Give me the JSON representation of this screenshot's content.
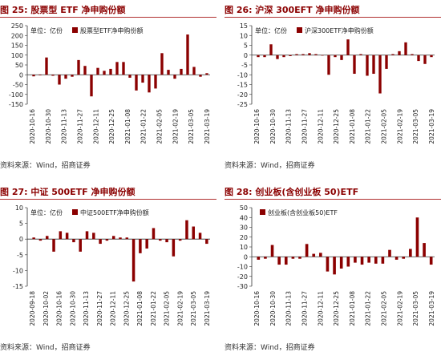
{
  "panels": [
    {
      "title": "图 25: 股票型 ETF 净申购份额",
      "source": "资料来源：Wind，招商证券",
      "unit": "单位：亿份",
      "chart_data": {
        "type": "bar",
        "title": "图 25: 股票型 ETF 净申购份额",
        "ylabel": "单位：亿份",
        "legend": "股票型ETF净申购份额",
        "legend_position": "top-left",
        "ylim": [
          -150,
          250
        ],
        "yticks": [
          -150,
          -100,
          -50,
          0,
          50,
          100,
          150,
          200,
          250
        ],
        "x_tick_labels": [
          "2020-10-16",
          "2020-10-30",
          "2020-11-13",
          "2020-11-27",
          "2020-12-11",
          "2020-12-25",
          "2021-01-08",
          "2021-01-22",
          "2021-02-05",
          "2021-02-19",
          "2021-03-05",
          "2021-03-19"
        ],
        "values": [
          -8,
          -3,
          88,
          -5,
          -50,
          -20,
          -10,
          75,
          45,
          -110,
          35,
          20,
          30,
          65,
          65,
          -15,
          -80,
          -40,
          -90,
          -70,
          110,
          25,
          -20,
          30,
          205,
          40,
          -10,
          8
        ],
        "grid": false,
        "bar_color": "#8b0000"
      }
    },
    {
      "title": "图 26: 沪深 300EFT 净申购份额",
      "source": "资料来源：Wind，招商证券",
      "unit": "单位：亿份",
      "chart_data": {
        "type": "bar",
        "title": "图 26: 沪深 300EFT 净申购份额",
        "ylabel": "单位：亿份",
        "legend": "沪深300ETF净申购份额",
        "legend_position": "top-left",
        "ylim": [
          -25,
          15
        ],
        "yticks": [
          -25,
          -20,
          -15,
          -10,
          -5,
          0,
          5,
          10,
          15
        ],
        "x_tick_labels": [
          "2020-10-16",
          "2020-10-30",
          "2020-11-13",
          "2020-11-27",
          "2020-12-11",
          "2020-12-25",
          "2021-01-08",
          "2021-01-22",
          "2021-02-05",
          "2021-02-19",
          "2021-03-05",
          "2021-03-19"
        ],
        "values": [
          -1,
          -1,
          5.5,
          -2,
          -1,
          -0.5,
          0.5,
          0.5,
          1,
          0.5,
          0,
          -10,
          -1,
          -2.5,
          8,
          -9.5,
          0.5,
          -10.5,
          -9.5,
          -19.5,
          -7,
          0.5,
          2,
          6.5,
          0.5,
          -3,
          -4.5,
          -1
        ],
        "grid": false,
        "bar_color": "#8b0000"
      }
    },
    {
      "title": "图 27: 中证 500ETF 净申购份额",
      "source": "资料来源：Wind，招商证券",
      "unit": "单位：亿份",
      "chart_data": {
        "type": "bar",
        "title": "图 27: 中证 500ETF 净申购份额",
        "ylabel": "单位：亿份",
        "legend": "中证500ETF净申购份额",
        "legend_position": "top-left",
        "ylim": [
          -15,
          10
        ],
        "yticks": [
          -15,
          -10,
          -5,
          0,
          5,
          10
        ],
        "x_tick_labels": [
          "2020-09-18",
          "2020-10-02",
          "2020-10-16",
          "2020-10-30",
          "2020-11-13",
          "2020-11-27",
          "2020-12-11",
          "2020-12-25",
          "2021-01-08",
          "2021-01-22",
          "2021-02-05",
          "2021-02-19",
          "2021-03-05",
          "2021-03-19"
        ],
        "values": [
          0.5,
          -0.5,
          1,
          -4,
          2.5,
          2,
          -1,
          -4,
          2.5,
          2,
          -1.5,
          -0.5,
          1,
          0.5,
          0.5,
          -13.5,
          -4.5,
          -3,
          3.5,
          -0.5,
          -1,
          -5.5,
          -0.5,
          6,
          4,
          2,
          -1.5
        ],
        "grid": false,
        "bar_color": "#8b0000"
      }
    },
    {
      "title": "图 28: 创业板(含创业板 50)ETF",
      "source": "资料来源：Wind，招商证券",
      "unit": "",
      "chart_data": {
        "type": "bar",
        "title": "图 28: 创业板(含创业板 50)ETF",
        "ylabel": "",
        "legend": "创业板(含创业板50)ETF",
        "legend_position": "top-left",
        "ylim": [
          -30,
          50
        ],
        "yticks": [
          -30,
          -20,
          -10,
          0,
          10,
          20,
          30,
          40,
          50
        ],
        "x_tick_labels": [
          "2020-10-16",
          "2020-10-30",
          "2020-11-13",
          "2020-11-27",
          "2020-12-11",
          "2020-12-25",
          "2021-01-08",
          "2021-01-22",
          "2021-02-05",
          "2021-02-19",
          "2021-03-05",
          "2021-03-19"
        ],
        "values": [
          -3,
          -2,
          12,
          -8,
          -8,
          -2,
          -2,
          13,
          3,
          4,
          -15,
          -18,
          -12,
          -10,
          -6,
          -8,
          -6,
          -7,
          -7,
          7,
          -3,
          -2,
          8,
          40,
          14,
          -8
        ],
        "grid": false,
        "bar_color": "#8b0000"
      }
    }
  ]
}
